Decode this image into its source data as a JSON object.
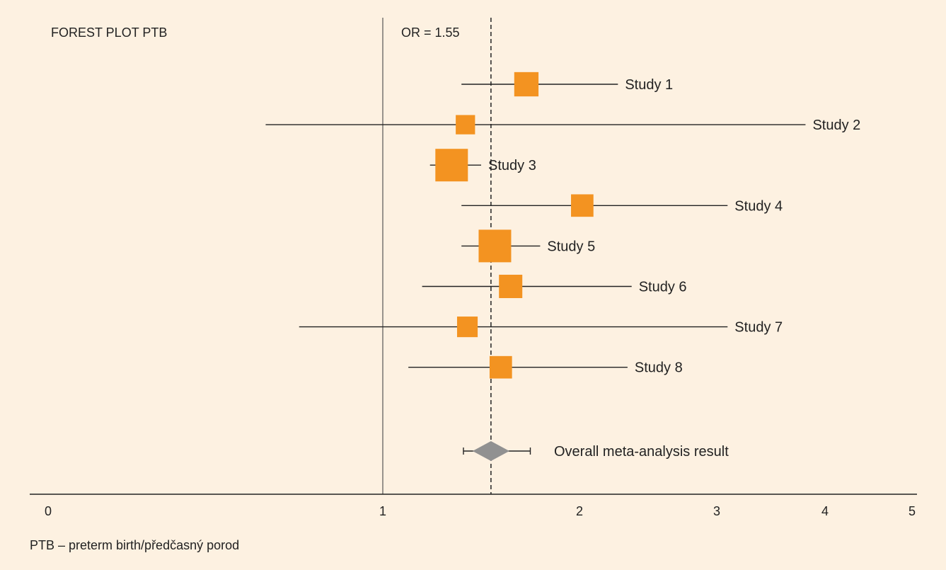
{
  "chart_data": {
    "type": "forest",
    "title": "FOREST PLOT PTB",
    "summary_label": "OR = 1.55",
    "reference_line_value": 1,
    "summary_value": 1.55,
    "x_ticks": [
      {
        "value": 0,
        "label": "0"
      },
      {
        "value": 1,
        "label": "1"
      },
      {
        "value": 2,
        "label": "2"
      },
      {
        "value": 3,
        "label": "3"
      },
      {
        "value": 4,
        "label": "4"
      },
      {
        "value": 5,
        "label": "5"
      }
    ],
    "studies": [
      {
        "name": "Study 1",
        "or": 1.73,
        "ci_low": 1.4,
        "ci_high": 2.28,
        "weight": 0.55
      },
      {
        "name": "Study 2",
        "or": 1.42,
        "ci_low": 0.65,
        "ci_high": 3.82,
        "weight": 0.28
      },
      {
        "name": "Study 3",
        "or": 1.35,
        "ci_low": 1.24,
        "ci_high": 1.5,
        "weight": 1.0
      },
      {
        "name": "Study 4",
        "or": 2.02,
        "ci_low": 1.4,
        "ci_high": 3.1,
        "weight": 0.45
      },
      {
        "name": "Study 5",
        "or": 1.57,
        "ci_low": 1.4,
        "ci_high": 1.8,
        "weight": 1.0
      },
      {
        "name": "Study 6",
        "or": 1.65,
        "ci_low": 1.2,
        "ci_high": 2.38,
        "weight": 0.5
      },
      {
        "name": "Study 7",
        "or": 1.43,
        "ci_low": 0.75,
        "ci_high": 3.1,
        "weight": 0.35
      },
      {
        "name": "Study 8",
        "or": 1.6,
        "ci_low": 1.13,
        "ci_high": 2.35,
        "weight": 0.45
      }
    ],
    "overall": {
      "name": "Overall meta-analysis result",
      "or": 1.55,
      "ci_low": 1.41,
      "ci_high": 1.75
    },
    "colors": {
      "study_marker": "#f39321",
      "overall_marker": "#919191",
      "lines": "#222222",
      "reference_line": "#555555",
      "background": "#fdf1e1"
    }
  },
  "footnote": "PTB – preterm birth/předčasný porod"
}
